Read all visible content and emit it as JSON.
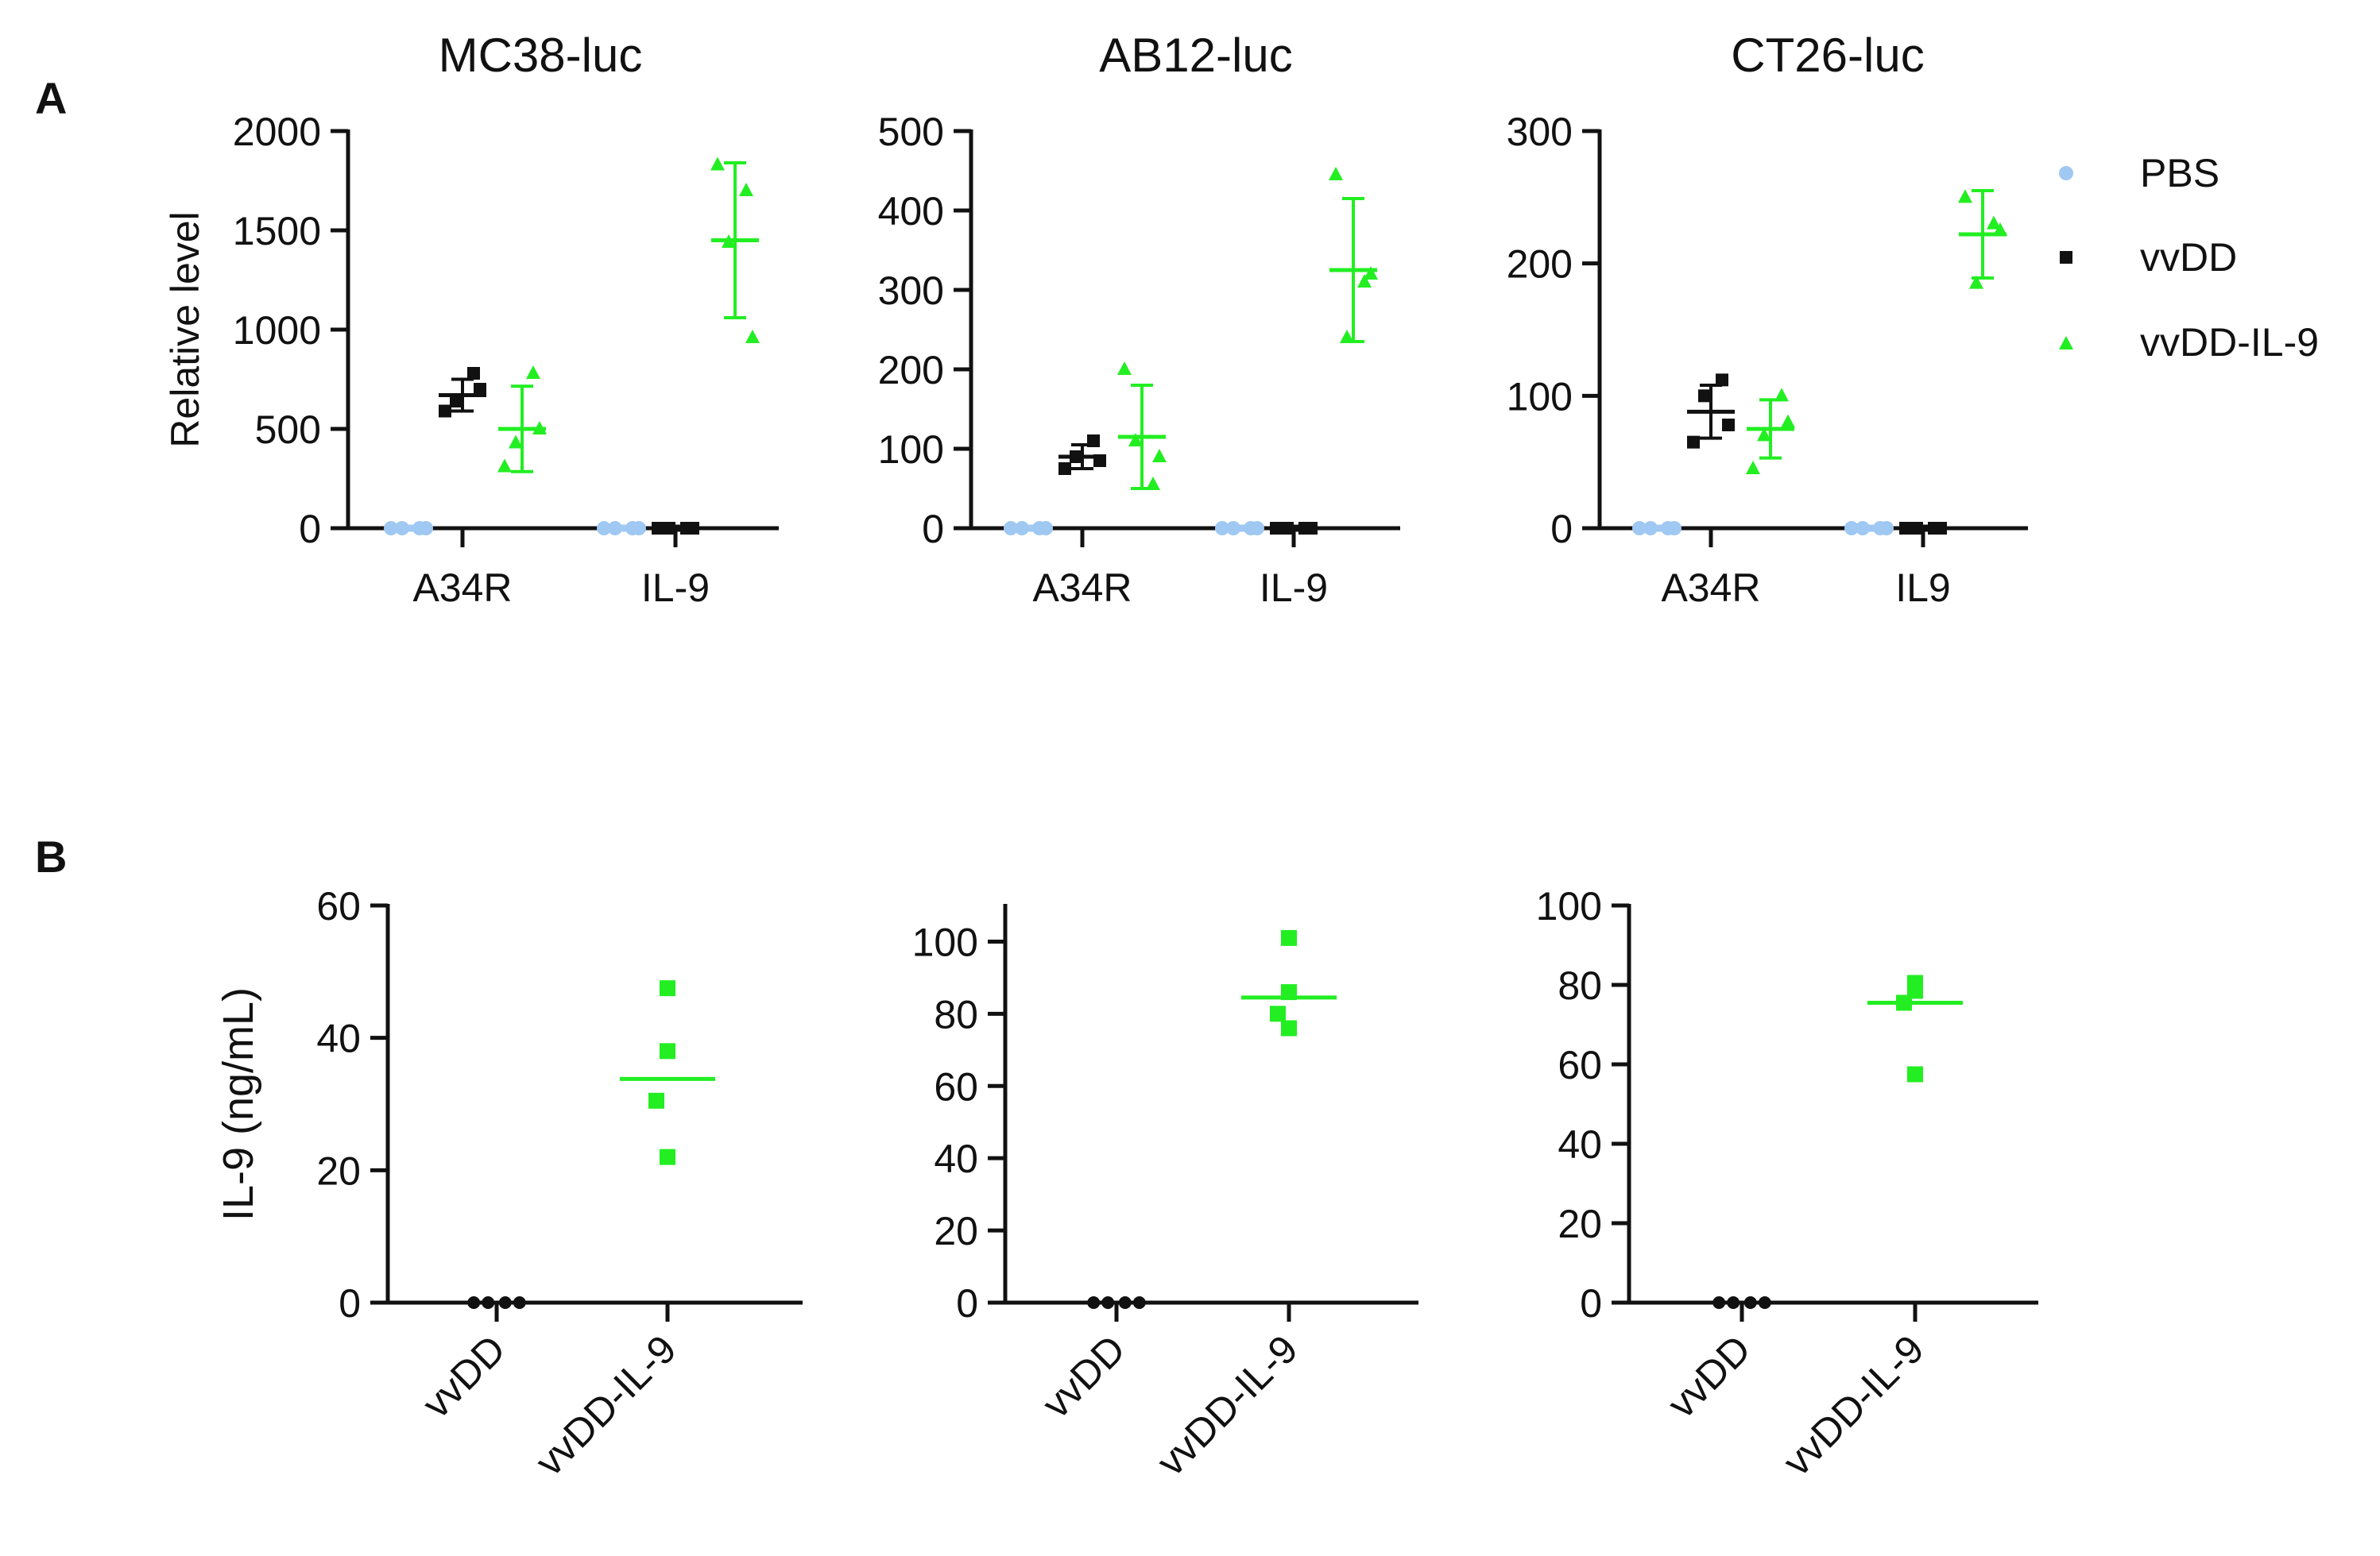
{
  "panel_labels": {
    "a": "A",
    "b": "B"
  },
  "legend": {
    "items": [
      {
        "label": "PBS",
        "color": "#9fc8f2",
        "marker": "circle"
      },
      {
        "label": "vvDD",
        "color": "#111111",
        "marker": "square"
      },
      {
        "label": "vvDD-IL-9",
        "color": "#22ee22",
        "marker": "triangle"
      }
    ]
  },
  "colors": {
    "PBS": "#9fc8f2",
    "vvDD": "#111111",
    "vvDD-IL-9": "#22ee22",
    "axis": "#111111"
  },
  "chart_data": [
    {
      "type": "scatter",
      "panel": "A",
      "title": "MC38-luc",
      "ylabel": "Relative level",
      "categories": [
        "A34R",
        "IL-9"
      ],
      "ylim": [
        0,
        2000
      ],
      "yticks": [
        "0",
        "500",
        "1000",
        "1500",
        "2000"
      ],
      "series": [
        {
          "name": "PBS",
          "points": [
            [
              0,
              0,
              0,
              0
            ],
            [
              0,
              0,
              0,
              0
            ]
          ],
          "mean": [
            0,
            0
          ],
          "sd": [
            0,
            0
          ]
        },
        {
          "name": "vvDD",
          "points": [
            [
              590,
              780,
              640,
              700
            ],
            [
              0,
              0,
              0,
              0
            ]
          ],
          "mean": [
            670,
            0
          ],
          "sd": [
            80,
            0
          ]
        },
        {
          "name": "vvDD-IL-9",
          "points": [
            [
              310,
              780,
              430,
              500
            ],
            [
              1830,
              1700,
              1440,
              960
            ]
          ],
          "mean": [
            500,
            1450
          ],
          "sd": [
            215,
            390
          ]
        }
      ]
    },
    {
      "type": "scatter",
      "panel": "A",
      "title": "AB12-luc",
      "ylabel": "",
      "categories": [
        "A34R",
        "IL-9"
      ],
      "ylim": [
        0,
        500
      ],
      "yticks": [
        "0",
        "100",
        "200",
        "300",
        "400",
        "500"
      ],
      "series": [
        {
          "name": "PBS",
          "points": [
            [
              0,
              0,
              0,
              0
            ],
            [
              0,
              0,
              0,
              0
            ]
          ],
          "mean": [
            0,
            0
          ],
          "sd": [
            0,
            0
          ]
        },
        {
          "name": "vvDD",
          "points": [
            [
              75,
              110,
              90,
              85
            ],
            [
              0,
              0,
              0,
              0
            ]
          ],
          "mean": [
            90,
            0
          ],
          "sd": [
            15,
            0
          ]
        },
        {
          "name": "vvDD-IL-9",
          "points": [
            [
              200,
              55,
              110,
              90
            ],
            [
              445,
              310,
              240,
              320
            ]
          ],
          "mean": [
            115,
            325
          ],
          "sd": [
            65,
            90
          ]
        }
      ]
    },
    {
      "type": "scatter",
      "panel": "A",
      "title": "CT26-luc",
      "ylabel": "",
      "categories": [
        "A34R",
        "IL9"
      ],
      "ylim": [
        0,
        300
      ],
      "yticks": [
        "0",
        "100",
        "200",
        "300"
      ],
      "series": [
        {
          "name": "PBS",
          "points": [
            [
              0,
              0,
              0,
              0
            ],
            [
              0,
              0,
              0,
              0
            ]
          ],
          "mean": [
            0,
            0
          ],
          "sd": [
            0,
            0
          ]
        },
        {
          "name": "vvDD",
          "points": [
            [
              65,
              112,
              100,
              78
            ],
            [
              0,
              0,
              0,
              0
            ]
          ],
          "mean": [
            88,
            0
          ],
          "sd": [
            20,
            0
          ]
        },
        {
          "name": "vvDD-IL-9",
          "points": [
            [
              45,
              100,
              70,
              80
            ],
            [
              250,
              230,
              185,
              225
            ]
          ],
          "mean": [
            75,
            222
          ],
          "sd": [
            22,
            33
          ]
        }
      ]
    },
    {
      "type": "scatter",
      "panel": "B",
      "title": "",
      "ylabel": "IL-9 (ng/mL)",
      "categories": [
        "vvDD",
        "vvDD-IL-9"
      ],
      "ylim": [
        0,
        60
      ],
      "yticks": [
        "0",
        "20",
        "40",
        "60"
      ],
      "series": [
        {
          "name": "vvDD",
          "points": [
            0,
            0,
            0,
            0
          ],
          "mean": 0
        },
        {
          "name": "vvDD-IL-9",
          "points": [
            47.5,
            38,
            30.5,
            22
          ],
          "mean": 33.8
        }
      ]
    },
    {
      "type": "scatter",
      "panel": "B",
      "title": "",
      "ylabel": "",
      "categories": [
        "vvDD",
        "vvDD-IL-9"
      ],
      "ylim": [
        0,
        110
      ],
      "yticks": [
        "0",
        "20",
        "40",
        "60",
        "80",
        "100"
      ],
      "series": [
        {
          "name": "vvDD",
          "points": [
            0,
            0,
            0,
            0
          ],
          "mean": 0
        },
        {
          "name": "vvDD-IL-9",
          "points": [
            101,
            86,
            80,
            76
          ],
          "mean": 84.5
        }
      ]
    },
    {
      "type": "scatter",
      "panel": "B",
      "title": "",
      "ylabel": "",
      "categories": [
        "vvDD",
        "vvDD-IL-9"
      ],
      "ylim": [
        0,
        100
      ],
      "yticks": [
        "0",
        "20",
        "40",
        "60",
        "80",
        "100"
      ],
      "series": [
        {
          "name": "vvDD",
          "points": [
            0,
            0,
            0,
            0
          ],
          "mean": 0
        },
        {
          "name": "vvDD-IL-9",
          "points": [
            80.5,
            78.5,
            75.5,
            57.5
          ],
          "mean": 75.5
        }
      ]
    }
  ]
}
